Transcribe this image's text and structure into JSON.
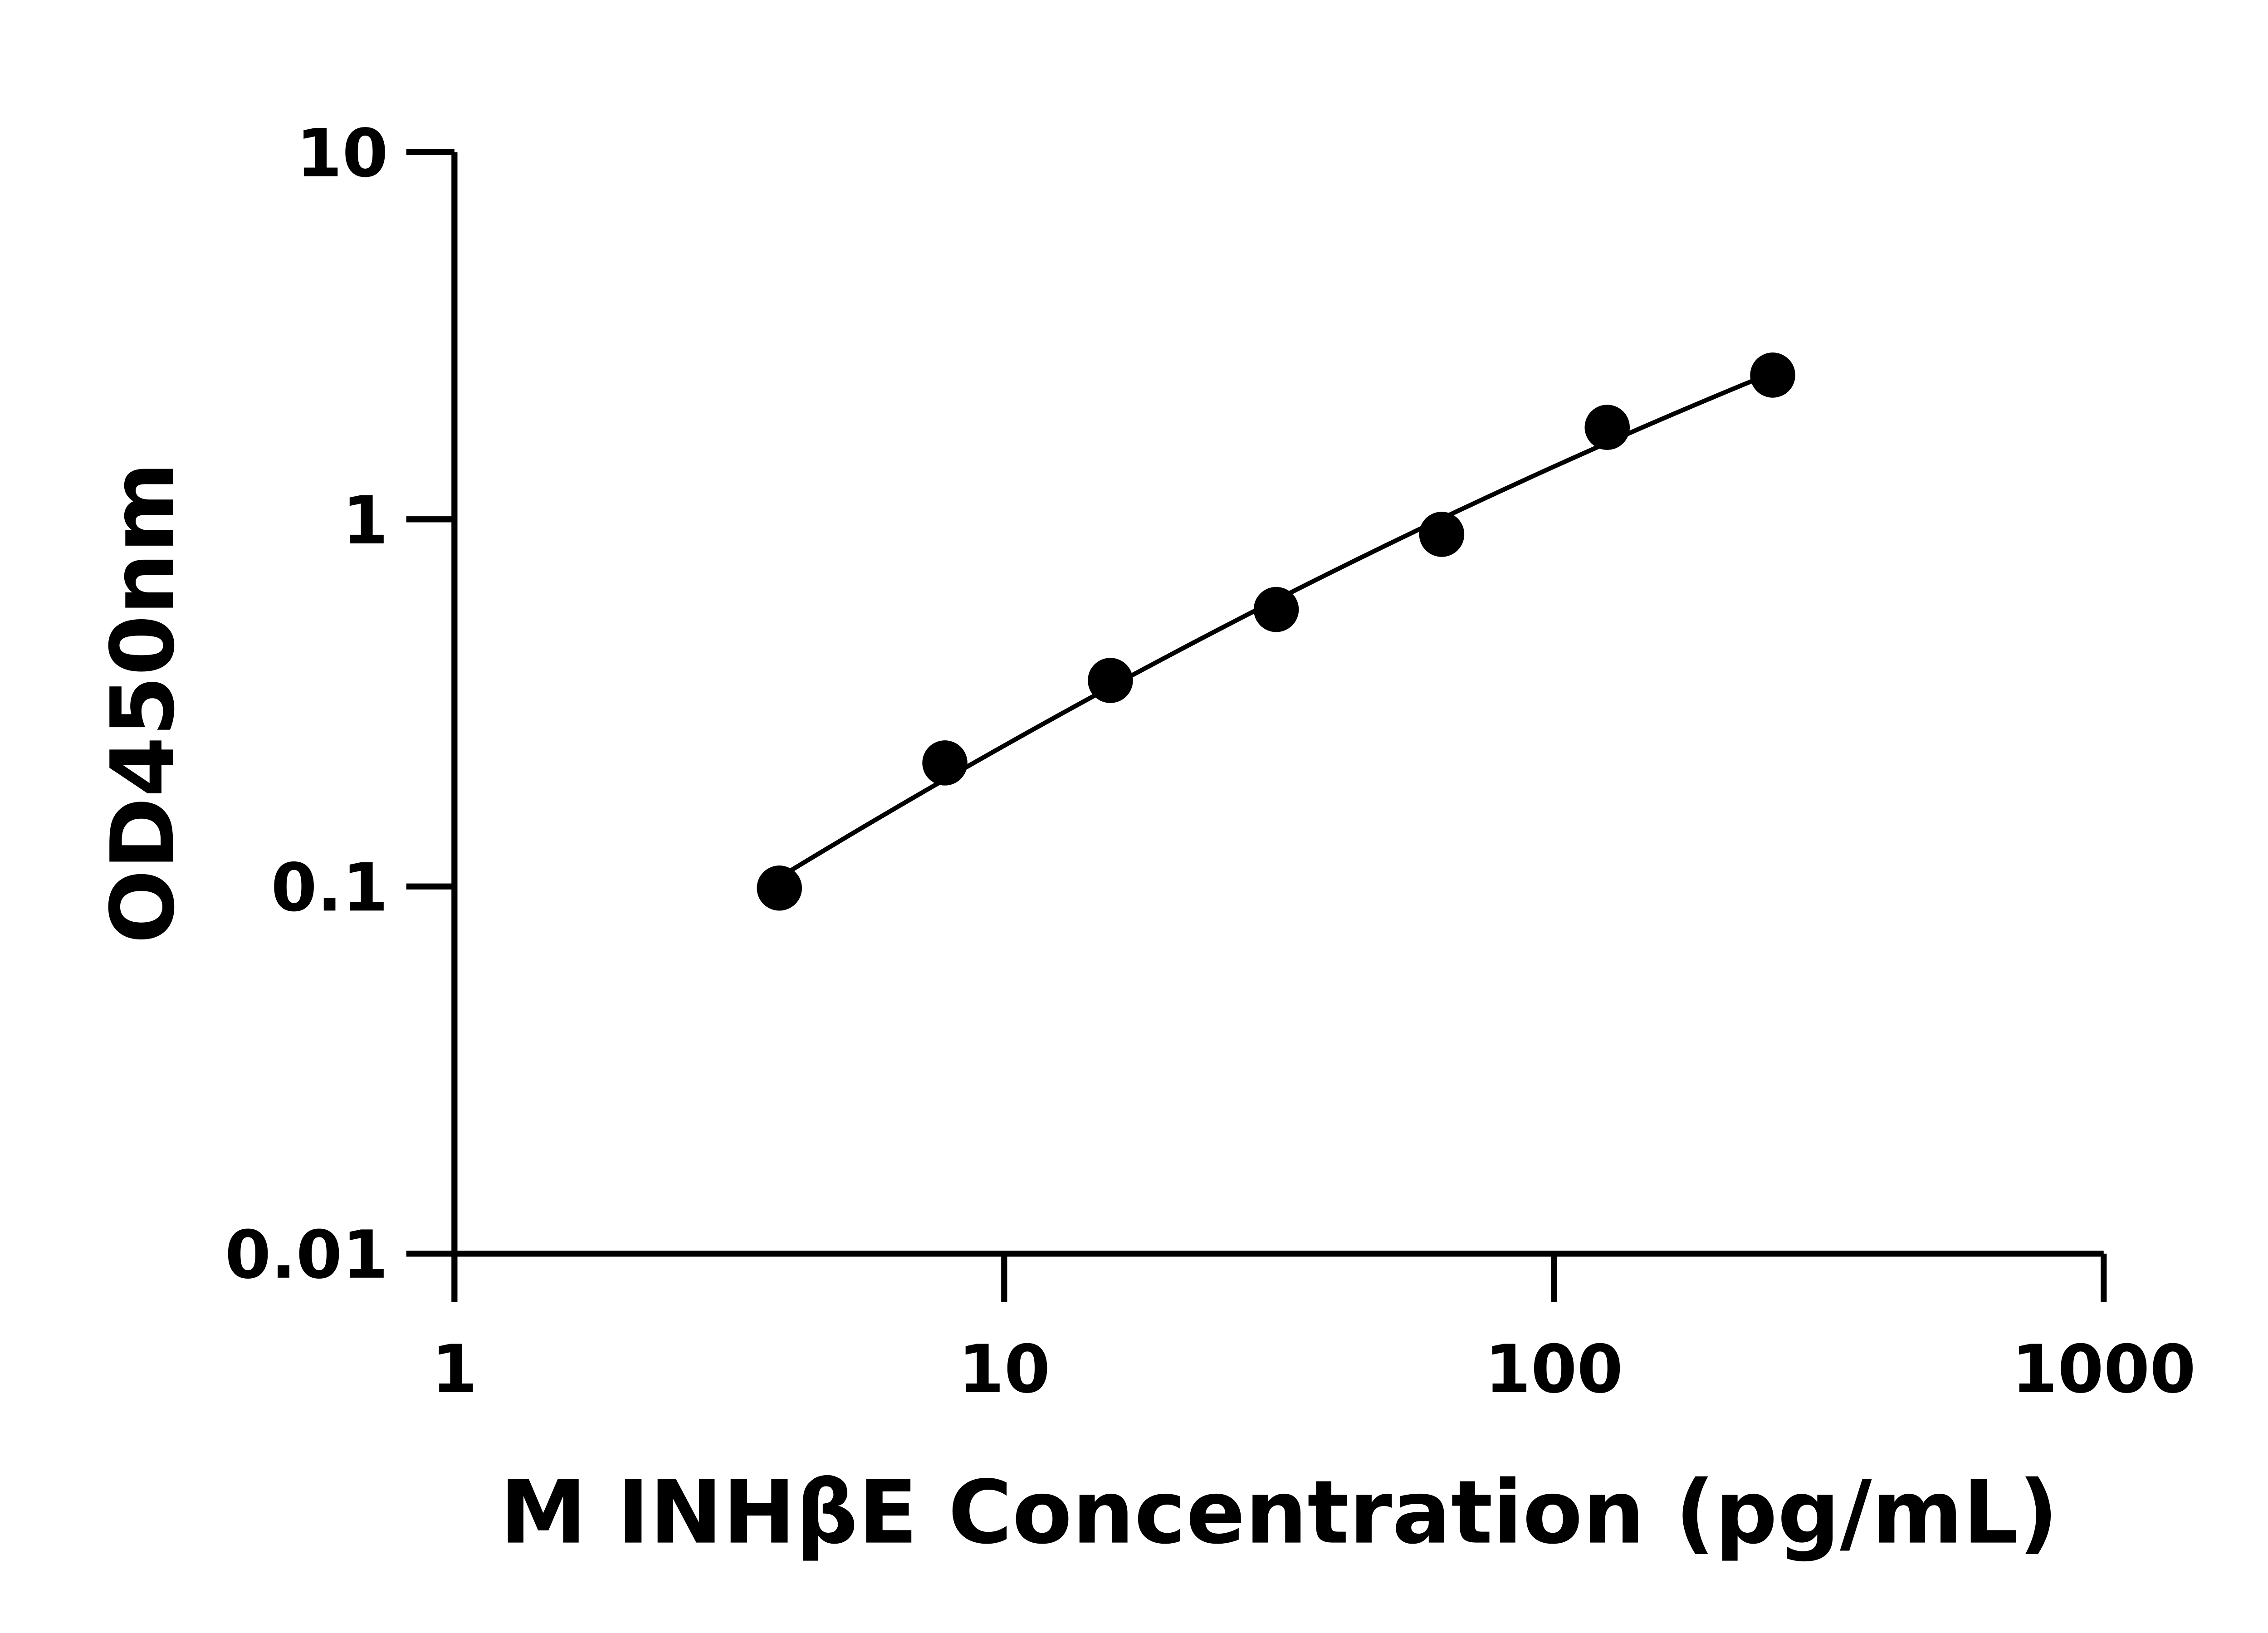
{
  "chart_data": {
    "type": "scatter",
    "xlabel": "M INHβE Concentration (pg/mL)",
    "ylabel": "OD450nm",
    "x_scale": "log",
    "y_scale": "log",
    "xlim": [
      1,
      1000
    ],
    "ylim": [
      0.01,
      10
    ],
    "x_ticks": [
      "1",
      "10",
      "100",
      "1000"
    ],
    "y_ticks": [
      "0.01",
      "0.1",
      "1",
      "10"
    ],
    "grid": false,
    "fit_curve": true,
    "color": "#000000",
    "points": [
      {
        "x": 3.9,
        "y": 0.099
      },
      {
        "x": 7.8,
        "y": 0.217
      },
      {
        "x": 15.6,
        "y": 0.364
      },
      {
        "x": 31.25,
        "y": 0.568
      },
      {
        "x": 62.5,
        "y": 0.91
      },
      {
        "x": 125,
        "y": 1.78
      },
      {
        "x": 250,
        "y": 2.47
      }
    ]
  }
}
